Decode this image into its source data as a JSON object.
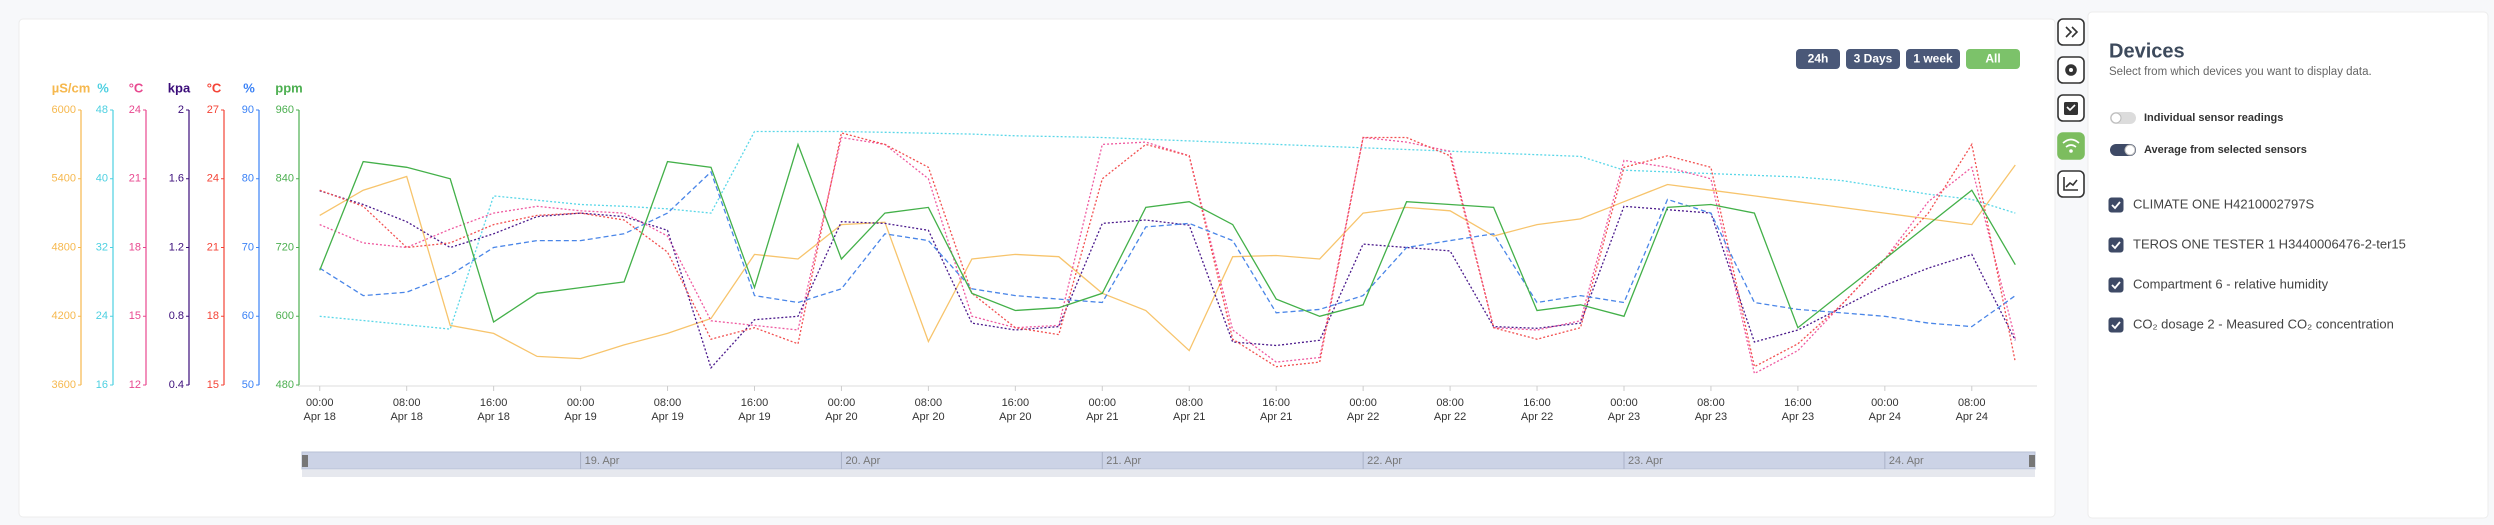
{
  "chart_data": {
    "type": "line",
    "xlim": [
      "Apr 17 22:00",
      "Apr 24 14:00"
    ],
    "xticks": [
      {
        "time": "00:00",
        "date": "Apr 18"
      },
      {
        "time": "08:00",
        "date": "Apr 18"
      },
      {
        "time": "16:00",
        "date": "Apr 18"
      },
      {
        "time": "00:00",
        "date": "Apr 19"
      },
      {
        "time": "08:00",
        "date": "Apr 19"
      },
      {
        "time": "16:00",
        "date": "Apr 19"
      },
      {
        "time": "00:00",
        "date": "Apr 20"
      },
      {
        "time": "08:00",
        "date": "Apr 20"
      },
      {
        "time": "16:00",
        "date": "Apr 20"
      },
      {
        "time": "00:00",
        "date": "Apr 21"
      },
      {
        "time": "08:00",
        "date": "Apr 21"
      },
      {
        "time": "16:00",
        "date": "Apr 21"
      },
      {
        "time": "00:00",
        "date": "Apr 22"
      },
      {
        "time": "08:00",
        "date": "Apr 22"
      },
      {
        "time": "16:00",
        "date": "Apr 22"
      },
      {
        "time": "00:00",
        "date": "Apr 23"
      },
      {
        "time": "08:00",
        "date": "Apr 23"
      },
      {
        "time": "16:00",
        "date": "Apr 23"
      },
      {
        "time": "00:00",
        "date": "Apr 24"
      },
      {
        "time": "08:00",
        "date": "Apr 24"
      }
    ],
    "x": [
      "Apr 18 00:00",
      "Apr 18 04:00",
      "Apr 18 08:00",
      "Apr 18 12:00",
      "Apr 18 16:00",
      "Apr 18 20:00",
      "Apr 19 00:00",
      "Apr 19 04:00",
      "Apr 19 08:00",
      "Apr 19 12:00",
      "Apr 19 16:00",
      "Apr 19 20:00",
      "Apr 20 00:00",
      "Apr 20 04:00",
      "Apr 20 08:00",
      "Apr 20 12:00",
      "Apr 20 16:00",
      "Apr 20 20:00",
      "Apr 21 00:00",
      "Apr 21 04:00",
      "Apr 21 08:00",
      "Apr 21 12:00",
      "Apr 21 16:00",
      "Apr 21 20:00",
      "Apr 22 00:00",
      "Apr 22 04:00",
      "Apr 22 08:00",
      "Apr 22 12:00",
      "Apr 22 16:00",
      "Apr 22 20:00",
      "Apr 23 00:00",
      "Apr 23 04:00",
      "Apr 23 08:00",
      "Apr 23 12:00",
      "Apr 23 16:00",
      "Apr 23 20:00",
      "Apr 24 00:00",
      "Apr 24 04:00",
      "Apr 24 08:00",
      "Apr 24 12:00"
    ],
    "axes": [
      {
        "label": "µS/cm",
        "color": "#f6b84e",
        "ylim": [
          3600,
          6000
        ],
        "yticks": [
          3600,
          4200,
          4800,
          5400,
          6000
        ]
      },
      {
        "label": "%",
        "color": "#4dd0e1",
        "ylim": [
          16,
          48
        ],
        "yticks": [
          16,
          24,
          32,
          40,
          48
        ]
      },
      {
        "label": "°C",
        "color": "#e8488f",
        "ylim": [
          12,
          24
        ],
        "yticks": [
          12,
          15,
          18,
          21,
          24
        ]
      },
      {
        "label": "kpa",
        "color": "#3b0d7a",
        "ylim": [
          0.4,
          2
        ],
        "yticks": [
          0.4,
          0.8,
          1.2,
          1.6,
          2
        ]
      },
      {
        "label": "°C",
        "color": "#f44336",
        "ylim": [
          15,
          27
        ],
        "yticks": [
          15,
          18,
          21,
          24,
          27
        ]
      },
      {
        "label": "%",
        "color": "#3b82f6",
        "ylim": [
          50,
          90
        ],
        "yticks": [
          50,
          60,
          70,
          80,
          90
        ]
      },
      {
        "label": "ppm",
        "color": "#4caf50",
        "ylim": [
          480,
          960
        ],
        "yticks": [
          480,
          600,
          720,
          840,
          960
        ]
      }
    ],
    "grid": false,
    "series": [
      {
        "axis": 0,
        "color": "#f7c46c",
        "style": "solid",
        "values": [
          5080,
          5300,
          5420,
          4120,
          4050,
          3850,
          3830,
          3950,
          4050,
          4180,
          4740,
          4700,
          5000,
          5020,
          3980,
          4700,
          4740,
          4720,
          4400,
          4250,
          3900,
          4720,
          4730,
          4700,
          5100,
          5150,
          5120,
          4900,
          5000,
          5050,
          5200,
          5350,
          5300,
          5250,
          5200,
          5150,
          5100,
          5050,
          5000,
          5520
        ]
      },
      {
        "axis": 1,
        "color": "#5ad7e8",
        "style": "dotted",
        "values": [
          24,
          23.5,
          23,
          22.5,
          38,
          37.5,
          37,
          36.8,
          36.5,
          36,
          45.5,
          45.5,
          45.5,
          45.4,
          45.3,
          45.2,
          45,
          44.9,
          44.8,
          44.6,
          44.4,
          44.2,
          44,
          43.8,
          43.6,
          43.4,
          43.2,
          43,
          42.8,
          42.6,
          41,
          40.8,
          40.6,
          40.4,
          40.2,
          39.8,
          39,
          38.2,
          37.6,
          36
        ]
      },
      {
        "axis": 2,
        "color": "#ef5aa0",
        "style": "dotted",
        "values": [
          19,
          18.2,
          18,
          18.8,
          19.5,
          19.8,
          19.6,
          19.5,
          18.5,
          14.8,
          14.6,
          14.4,
          22.8,
          22.5,
          21,
          15,
          14.5,
          14.6,
          22.5,
          22.6,
          22,
          14.4,
          13,
          13.2,
          22.8,
          22.6,
          22.2,
          14.5,
          14.4,
          14.8,
          21.8,
          21.5,
          21,
          12.5,
          13.5,
          15.5,
          17.5,
          20,
          21.5,
          14
        ]
      },
      {
        "axis": 3,
        "color": "#4b1a8c",
        "style": "dotted",
        "values": [
          1.53,
          1.45,
          1.35,
          1.2,
          1.28,
          1.38,
          1.4,
          1.38,
          1.3,
          0.5,
          0.78,
          0.8,
          1.35,
          1.34,
          1.3,
          0.76,
          0.72,
          0.74,
          1.34,
          1.36,
          1.33,
          0.65,
          0.63,
          0.66,
          1.22,
          1.2,
          1.18,
          0.74,
          0.73,
          0.76,
          1.44,
          1.42,
          1.4,
          0.65,
          0.72,
          0.85,
          0.98,
          1.08,
          1.16,
          0.66
        ]
      },
      {
        "axis": 4,
        "color": "#f25050",
        "style": "dotted",
        "values": [
          23.5,
          22.8,
          21,
          21.2,
          22,
          22.4,
          22.5,
          22.2,
          20.8,
          17,
          17.5,
          16.8,
          26,
          25.5,
          24.5,
          19,
          17.5,
          17.2,
          24,
          25.5,
          25,
          17,
          15.8,
          16,
          25.8,
          25.8,
          25,
          17.5,
          17,
          17.5,
          24.5,
          25,
          24.5,
          15.8,
          16.8,
          18.5,
          20.5,
          22.5,
          25.5,
          16
        ]
      },
      {
        "axis": 5,
        "color": "#4a86e8",
        "style": "dashed",
        "values": [
          67,
          63,
          63.5,
          66,
          70,
          71,
          71,
          72,
          75,
          81,
          63,
          62,
          64,
          72,
          71,
          64,
          63,
          62.5,
          62,
          73,
          73.5,
          71,
          60.5,
          61,
          63,
          70,
          71,
          72,
          62,
          63,
          62,
          77,
          75,
          62,
          61,
          60.5,
          60,
          59,
          58.5,
          63
        ]
      },
      {
        "axis": 6,
        "color": "#43b049",
        "style": "solid",
        "values": [
          680,
          870,
          860,
          840,
          590,
          640,
          650,
          660,
          870,
          860,
          650,
          900,
          700,
          780,
          790,
          640,
          610,
          615,
          640,
          790,
          800,
          760,
          630,
          600,
          620,
          800,
          795,
          790,
          610,
          620,
          600,
          790,
          795,
          780,
          580,
          640,
          700,
          760,
          820,
          690
        ]
      }
    ],
    "navigator": {
      "labels": [
        "19. Apr",
        "20. Apr",
        "21. Apr",
        "22. Apr",
        "23. Apr",
        "24. Apr"
      ]
    },
    "range_buttons": [
      {
        "label": "24h",
        "active": false
      },
      {
        "label": "3 Days",
        "active": false
      },
      {
        "label": "1 week",
        "active": false
      },
      {
        "label": "All",
        "active": true
      }
    ]
  },
  "panel": {
    "title": "Devices",
    "subtitle": "Select from which devices you want to display data.",
    "toggles": [
      {
        "label": "Individual sensor readings",
        "on": false
      },
      {
        "label": "Average from selected sensors",
        "on": true
      }
    ],
    "devices": [
      {
        "label": "CLIMATE ONE H4210002797S",
        "checked": true
      },
      {
        "label": "TEROS ONE TESTER 1 H3440006476-2-ter15",
        "checked": true
      },
      {
        "label": "Compartment 6 - relative humidity",
        "checked": true
      },
      {
        "label": "CO₂ dosage 2 - Measured CO₂ concentration",
        "checked": true
      }
    ]
  }
}
